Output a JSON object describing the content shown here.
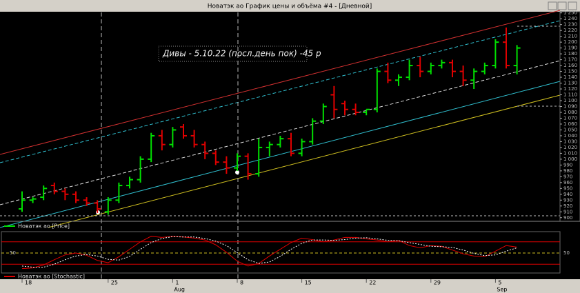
{
  "window": {
    "title": "Новатэк ао График цены и объёма #4 - [Дневной]"
  },
  "chart_data": [
    {
      "type": "ohlc",
      "annotation": "Дивы  - 5.10.22 (посл.день пок) -45 р",
      "legend": "Новатэк ао [Price]",
      "categories": [
        "18",
        null,
        null,
        null,
        null,
        null,
        null,
        null,
        "25",
        null,
        null,
        null,
        null,
        null,
        "1",
        null,
        null,
        null,
        null,
        null,
        "8",
        null,
        null,
        null,
        null,
        null,
        "15",
        null,
        null,
        null,
        null,
        null,
        "22",
        null,
        null,
        null,
        null,
        null,
        "29",
        null,
        null,
        null,
        null,
        null,
        "5",
        null,
        null
      ],
      "months": [
        "Aug",
        "Sep"
      ],
      "up_color": "#00e000",
      "down_color": "#e00000",
      "open": [
        915,
        930,
        935,
        955,
        945,
        940,
        930,
        925,
        910,
        930,
        955,
        965,
        1000,
        1040,
        1025,
        1055,
        1040,
        1025,
        1010,
        995,
        985,
        1005,
        975,
        1020,
        1025,
        1035,
        1010,
        1030,
        1065,
        1110,
        1095,
        1085,
        1080,
        1085,
        1150,
        1135,
        1140,
        1160,
        1150,
        1160,
        1165,
        1150,
        1135,
        1150,
        1160,
        1200,
        1160
      ],
      "high": [
        945,
        935,
        955,
        960,
        950,
        945,
        935,
        930,
        935,
        960,
        970,
        1005,
        1045,
        1050,
        1055,
        1060,
        1050,
        1030,
        1015,
        1005,
        1010,
        1010,
        1035,
        1030,
        1040,
        1045,
        1035,
        1070,
        1095,
        1125,
        1100,
        1095,
        1085,
        1155,
        1165,
        1145,
        1170,
        1175,
        1165,
        1170,
        1170,
        1160,
        1155,
        1165,
        1205,
        1225,
        1195
      ],
      "low": [
        910,
        925,
        930,
        940,
        930,
        925,
        920,
        908,
        905,
        925,
        950,
        960,
        995,
        1015,
        1020,
        1035,
        1020,
        1000,
        990,
        975,
        980,
        965,
        970,
        1005,
        1020,
        1005,
        1005,
        1025,
        1060,
        1070,
        1075,
        1075,
        1075,
        1080,
        1130,
        1125,
        1135,
        1140,
        1145,
        1155,
        1140,
        1125,
        1120,
        1145,
        1155,
        1155,
        1145
      ],
      "close": [
        930,
        932,
        950,
        945,
        940,
        930,
        925,
        915,
        930,
        955,
        965,
        1000,
        1040,
        1025,
        1050,
        1040,
        1025,
        1010,
        995,
        985,
        1005,
        975,
        1020,
        1025,
        1035,
        1010,
        1030,
        1065,
        1090,
        1085,
        1085,
        1080,
        1085,
        1150,
        1135,
        1140,
        1160,
        1150,
        1160,
        1165,
        1150,
        1135,
        1150,
        1160,
        1200,
        1160,
        1190
      ],
      "ylim": [
        895,
        1252
      ],
      "yticks": [
        900,
        910,
        920,
        930,
        940,
        950,
        960,
        970,
        980,
        990,
        {
          "value": 1000,
          "label": "1 000"
        },
        {
          "value": 1010,
          "label": "1 010"
        },
        {
          "value": 1020,
          "label": "1 020"
        },
        {
          "value": 1030,
          "label": "1 030"
        },
        {
          "value": 1040,
          "label": "1 040"
        },
        {
          "value": 1050,
          "label": "1 050"
        },
        {
          "value": 1060,
          "label": "1 060"
        },
        {
          "value": 1070,
          "label": "1 070"
        },
        {
          "value": 1080,
          "label": "1 080"
        },
        {
          "value": 1090,
          "label": "1 090"
        },
        {
          "value": 1100,
          "label": "1 100"
        },
        {
          "value": 1110,
          "label": "1 110"
        },
        {
          "value": 1120,
          "label": "1 120"
        },
        {
          "value": 1130,
          "label": "1 130"
        },
        {
          "value": 1140,
          "label": "1 140"
        },
        {
          "value": 1150,
          "label": "1 150"
        },
        {
          "value": 1160,
          "label": "1 160"
        },
        {
          "value": 1170,
          "label": "1 170"
        },
        {
          "value": 1180,
          "label": "1 180"
        },
        {
          "value": 1190,
          "label": "1 190"
        },
        {
          "value": 1200,
          "label": "1 200"
        },
        {
          "value": 1210,
          "label": "1 210"
        },
        {
          "value": 1220,
          "label": "1 220"
        },
        {
          "value": 1230,
          "label": "1 230"
        },
        {
          "value": 1240,
          "label": "1 240"
        },
        {
          "value": 1250,
          "label": "1 250"
        }
      ]
    },
    {
      "type": "line",
      "legend": "Новатэк ао [Stochastic]",
      "ylim": [
        0,
        100
      ],
      "yticks": [
        50
      ],
      "levels": [
        20,
        80
      ],
      "level_color": "#e00000",
      "series": [
        {
          "color": "#e00000",
          "values": [
            8,
            10,
            18,
            32,
            45,
            50,
            44,
            30,
            24,
            40,
            60,
            80,
            95,
            92,
            95,
            93,
            90,
            85,
            72,
            52,
            28,
            15,
            22,
            42,
            60,
            78,
            90,
            86,
            80,
            85,
            92,
            92,
            88,
            85,
            80,
            84,
            70,
            64,
            70,
            68,
            58,
            48,
            42,
            40,
            55,
            70,
            66
          ]
        },
        {
          "color": "#ffffff",
          "values": [
            15,
            12,
            12,
            20,
            32,
            42,
            46,
            42,
            33,
            31,
            41,
            60,
            78,
            89,
            94,
            93,
            93,
            89,
            82,
            70,
            51,
            32,
            22,
            26,
            41,
            60,
            76,
            85,
            85,
            84,
            86,
            90,
            91,
            88,
            84,
            83,
            78,
            73,
            68,
            67,
            65,
            58,
            49,
            43,
            45,
            55,
            64
          ]
        }
      ]
    }
  ]
}
